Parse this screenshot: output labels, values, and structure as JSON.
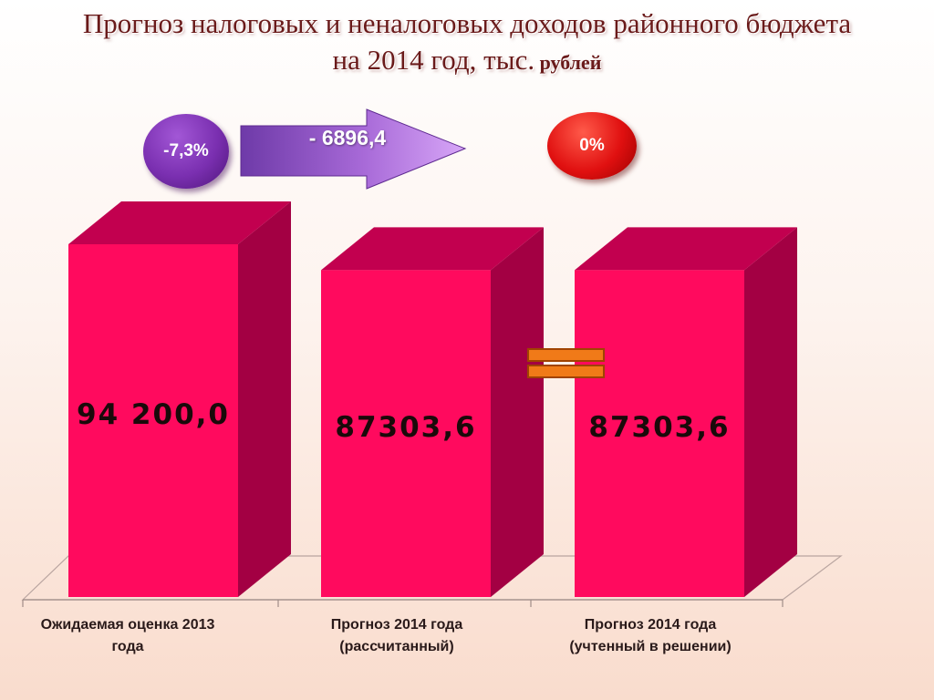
{
  "title": {
    "line1": "Прогноз налоговых и неналоговых доходов районного  бюджета",
    "line2_main": "на 2014 год, тыс.",
    "line2_small": " рублей"
  },
  "annotations": {
    "change_percent": "-7,3%",
    "change_amount": "- 6896,4",
    "zero_percent": "0%"
  },
  "colors": {
    "bar_front": "#ff0a5e",
    "bar_side": "#a30043",
    "bar_top": "#c2004f",
    "equal_sign": "#f07a18",
    "arrow": "#b770e6",
    "title": "#6a1a1a"
  },
  "chart_data": {
    "type": "bar",
    "categories": [
      [
        "Ожидаемая оценка 2013",
        "года"
      ],
      [
        "Прогноз 2014 года",
        "(рассчитанный)"
      ],
      [
        "Прогноз 2014 года",
        "(учтенный в решении)"
      ]
    ],
    "values": [
      94200.0,
      87303.6,
      87303.6
    ],
    "value_labels": [
      "94 200,0",
      "87303,6",
      "87303,6"
    ],
    "ylim": [
      0,
      94200
    ],
    "title": "Прогноз налоговых и неналоговых доходов районного бюджета на 2014 год, тыс. рублей",
    "xlabel": "",
    "ylabel": "",
    "grid": false,
    "legend": "none",
    "style": "3d-bar"
  }
}
